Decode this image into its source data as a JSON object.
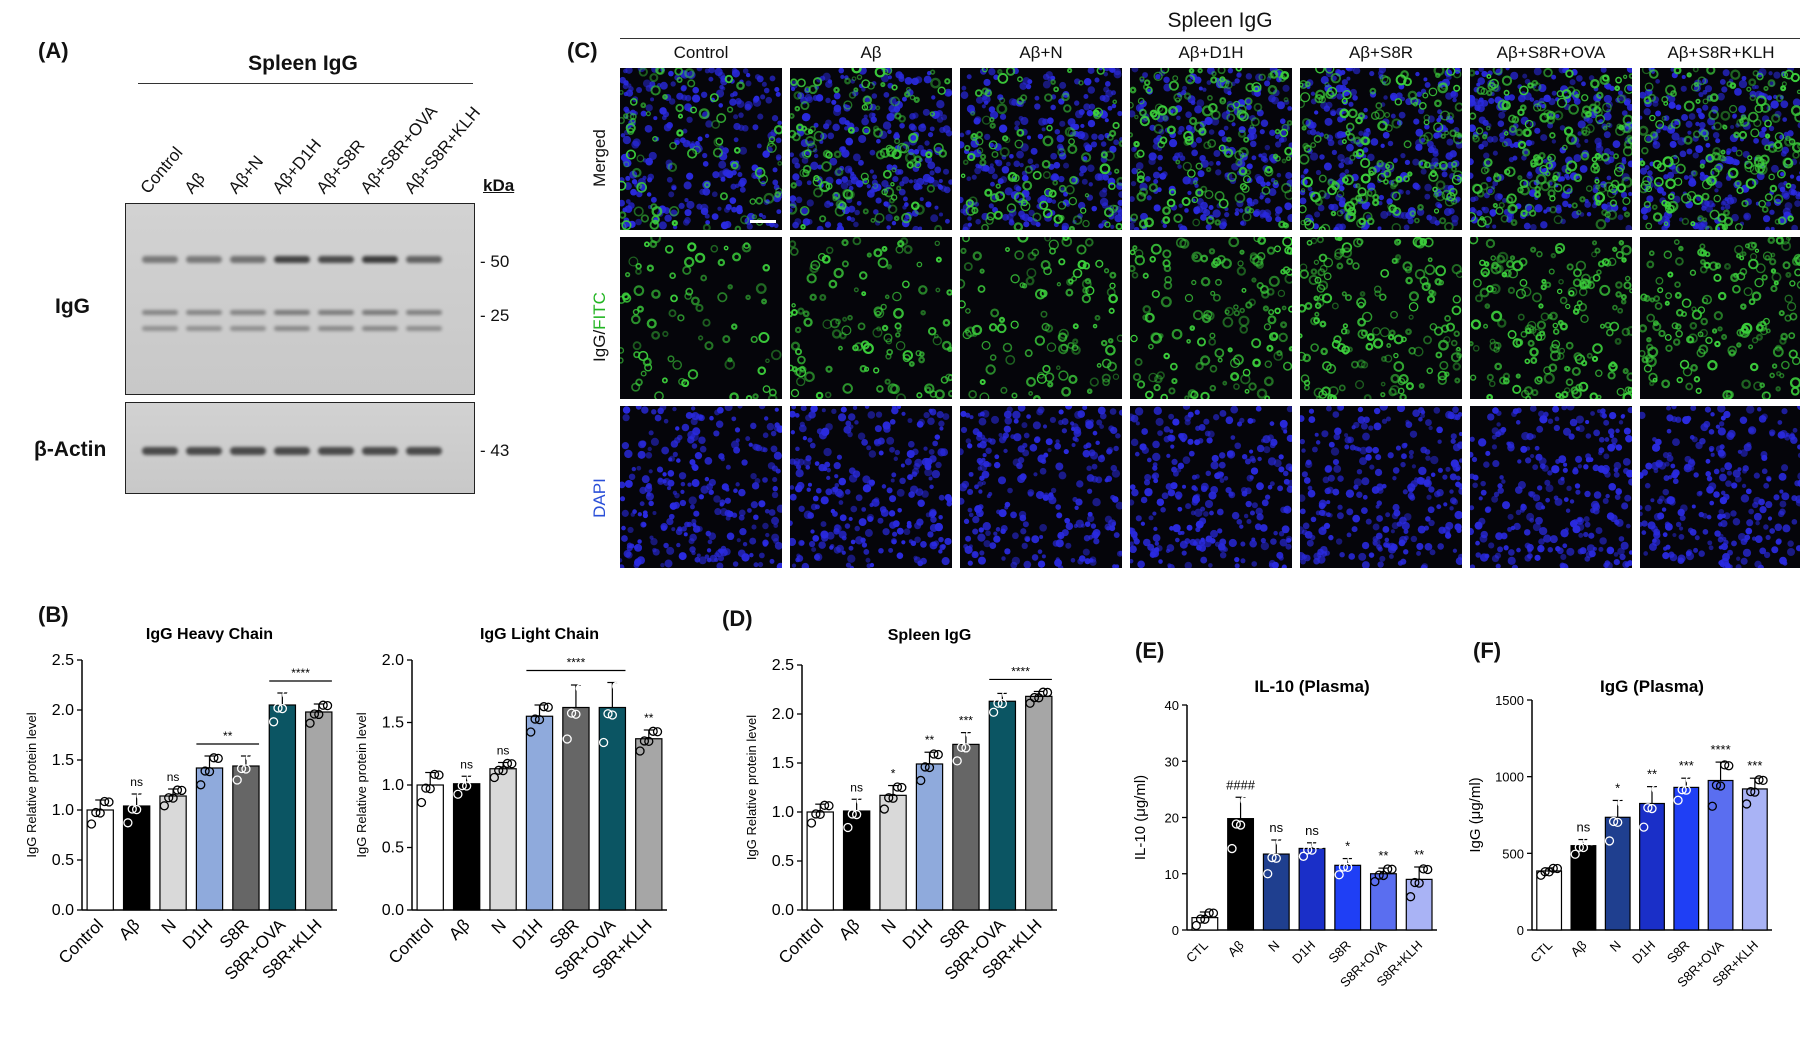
{
  "panel_a": {
    "letter": "(A)",
    "title": "Spleen IgG",
    "lanes": [
      "Control",
      "Aβ",
      "Aβ+N",
      "Aβ+D1H",
      "Aβ+S8R",
      "Aβ+S8R+OVA",
      "Aβ+S8R+KLH"
    ],
    "kda_header": "kDa",
    "row_igg": "IgG",
    "row_actin": "β-Actin",
    "marker_50": "- 50",
    "marker_25": "- 25",
    "marker_43": "- 43"
  },
  "panel_c": {
    "letter": "(C)",
    "title": "Spleen IgG",
    "columns": [
      "Control",
      "Aβ",
      "Aβ+N",
      "Aβ+D1H",
      "Aβ+S8R",
      "Aβ+S8R+OVA",
      "Aβ+S8R+KLH"
    ],
    "row_merged": "Merged",
    "row_igg_a": "IgG/",
    "row_igg_b": "FITC",
    "row_dapi": "DAPI",
    "color_green": "#3ccf3c",
    "color_blue": "#2a2ae0"
  },
  "panel_letters": {
    "b": "(B)",
    "d": "(D)",
    "e": "(E)",
    "f": "(F)"
  },
  "chart_data": [
    {
      "id": "B1",
      "type": "bar",
      "title": "IgG Heavy Chain",
      "ylabel": "IgG Relative protein level",
      "ylim": [
        0,
        2.5
      ],
      "yticks": [
        "0.0",
        "0.5",
        "1.0",
        "1.5",
        "2.0",
        "2.5"
      ],
      "categories": [
        "Control",
        "Aβ",
        "N",
        "D1H",
        "S8R",
        "S8R+OVA",
        "S8R+KLH"
      ],
      "values": [
        1.0,
        1.04,
        1.14,
        1.42,
        1.44,
        2.05,
        1.98
      ],
      "errors": [
        0.1,
        0.12,
        0.07,
        0.12,
        0.1,
        0.12,
        0.08
      ],
      "colors": [
        "#ffffff",
        "#000000",
        "#d9d9d9",
        "#8faadc",
        "#666666",
        "#0b5563",
        "#a6a6a6"
      ],
      "sig": [
        "",
        "ns",
        "ns",
        "",
        "",
        "",
        ""
      ],
      "brackets": [
        {
          "from": 3,
          "to": 4,
          "label": "**"
        },
        {
          "from": 5,
          "to": 6,
          "label": "****"
        }
      ]
    },
    {
      "id": "B2",
      "type": "bar",
      "title": "IgG Light Chain",
      "ylabel": "IgG Relative protein level",
      "ylim": [
        0,
        2.0
      ],
      "yticks": [
        "0.0",
        "0.5",
        "1.0",
        "1.5",
        "2.0"
      ],
      "categories": [
        "Control",
        "Aβ",
        "N",
        "D1H",
        "S8R",
        "S8R+OVA",
        "S8R+KLH"
      ],
      "values": [
        1.0,
        1.01,
        1.13,
        1.55,
        1.62,
        1.62,
        1.37
      ],
      "errors": [
        0.1,
        0.06,
        0.05,
        0.09,
        0.18,
        0.2,
        0.07
      ],
      "colors": [
        "#ffffff",
        "#000000",
        "#d9d9d9",
        "#8faadc",
        "#666666",
        "#0b5563",
        "#a6a6a6"
      ],
      "sig": [
        "",
        "ns",
        "ns",
        "",
        "",
        "",
        "**"
      ],
      "brackets": [
        {
          "from": 3,
          "to": 5,
          "label": "****"
        }
      ]
    },
    {
      "id": "D",
      "type": "bar",
      "title": "Spleen IgG",
      "ylabel": "IgG Relative protein level",
      "ylim": [
        0,
        2.5
      ],
      "yticks": [
        "0.0",
        "0.5",
        "1.0",
        "1.5",
        "2.0",
        "2.5"
      ],
      "categories": [
        "Control",
        "Aβ",
        "N",
        "D1H",
        "S8R",
        "S8R+OVA",
        "S8R+KLH"
      ],
      "values": [
        1.0,
        1.01,
        1.17,
        1.49,
        1.69,
        2.13,
        2.18
      ],
      "errors": [
        0.08,
        0.12,
        0.1,
        0.12,
        0.12,
        0.08,
        0.05
      ],
      "colors": [
        "#ffffff",
        "#000000",
        "#d9d9d9",
        "#8faadc",
        "#666666",
        "#0b5563",
        "#a6a6a6"
      ],
      "sig": [
        "",
        "ns",
        "*",
        "**",
        "***",
        "",
        ""
      ],
      "brackets": [
        {
          "from": 5,
          "to": 6,
          "label": "****"
        }
      ]
    },
    {
      "id": "E",
      "type": "bar",
      "title": "IL-10 (Plasma)",
      "ylabel": "IL-10 (μg/ml)",
      "ylim": [
        0,
        40
      ],
      "yticks": [
        "0",
        "10",
        "20",
        "30",
        "40"
      ],
      "categories": [
        "CTL",
        "Aβ",
        "N",
        "D1H",
        "S8R",
        "S8R+OVA",
        "S8R+KLH"
      ],
      "values": [
        2.2,
        19.8,
        13.5,
        14.5,
        11.5,
        10.0,
        9.0
      ],
      "errors": [
        1.0,
        3.8,
        2.5,
        1.0,
        1.2,
        1.0,
        2.2
      ],
      "colors": [
        "#ffffff",
        "#000000",
        "#1f3f8f",
        "#1a2fc8",
        "#1f3ff5",
        "#5a6ef0",
        "#a9b3f5"
      ],
      "sig": [
        "",
        "####",
        "ns",
        "ns",
        "*",
        "**",
        "**"
      ],
      "brackets": []
    },
    {
      "id": "F",
      "type": "bar",
      "title": "IgG (Plasma)",
      "ylabel": "IgG (μg/ml)",
      "ylim": [
        0,
        1500
      ],
      "yticks": [
        "0",
        "500",
        "1000",
        "1500"
      ],
      "categories": [
        "CTL",
        "Aβ",
        "N",
        "D1H",
        "S8R",
        "S8R+OVA",
        "S8R+KLH"
      ],
      "values": [
        385,
        550,
        735,
        825,
        930,
        975,
        920
      ],
      "errors": [
        20,
        40,
        110,
        110,
        60,
        120,
        70
      ],
      "colors": [
        "#ffffff",
        "#000000",
        "#1f3f8f",
        "#1a2fc8",
        "#1f3ff5",
        "#5a6ef0",
        "#a9b3f5"
      ],
      "sig": [
        "",
        "ns",
        "*",
        "**",
        "***",
        "****",
        "***"
      ],
      "brackets": []
    }
  ]
}
